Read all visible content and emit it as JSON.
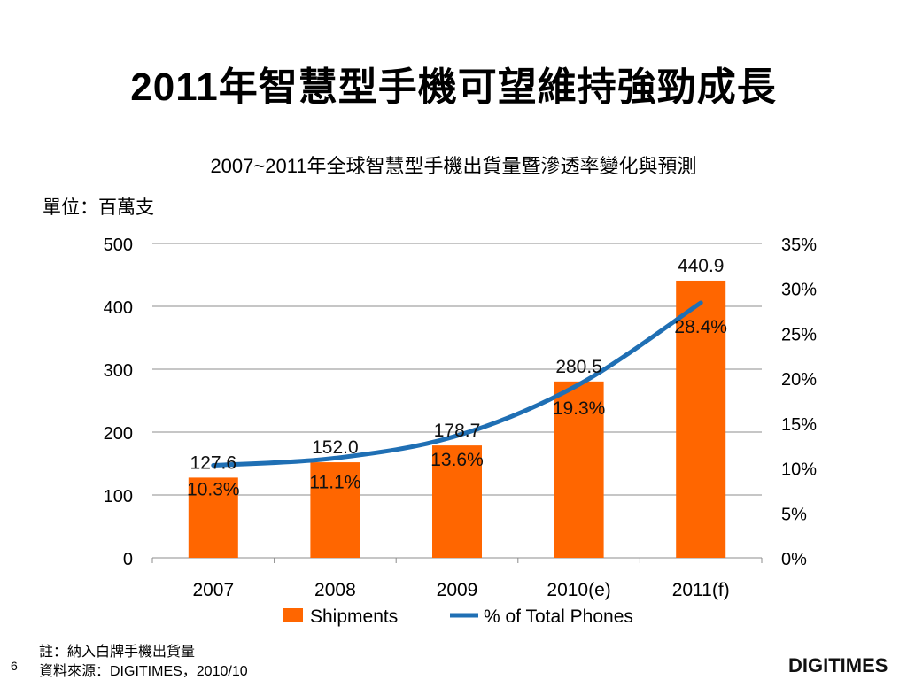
{
  "slide": {
    "title": "2011年智慧型手機可望維持強勁成長",
    "unit": "單位：百萬支",
    "note": "註：納入白牌手機出貨量",
    "source": "資料來源：DIGITIMES，2010/10",
    "page_number": "6",
    "logo_text": "DIGITIMES"
  },
  "chart_data": {
    "type": "bar+line",
    "title": "2007~2011年全球智慧型手機出貨量暨滲透率變化與預測",
    "categories": [
      "2007",
      "2008",
      "2009",
      "2010(e)",
      "2011(f)"
    ],
    "series": [
      {
        "name": "Shipments",
        "type": "bar",
        "axis": "left",
        "color": "#FF6600",
        "values": [
          127.6,
          152.0,
          178.7,
          280.5,
          440.9
        ],
        "labels": [
          "127.6",
          "152.0",
          "178.7",
          "280.5",
          "440.9"
        ]
      },
      {
        "name": "% of Total Phones",
        "type": "line",
        "axis": "right",
        "color": "#1F6FB4",
        "values": [
          10.3,
          11.1,
          13.6,
          19.3,
          28.4
        ],
        "labels": [
          "10.3%",
          "11.1%",
          "13.6%",
          "19.3%",
          "28.4%"
        ]
      }
    ],
    "y_left": {
      "min": 0,
      "max": 500,
      "ticks": [
        "0",
        "100",
        "200",
        "300",
        "400",
        "500"
      ]
    },
    "y_right": {
      "min": 0,
      "max": 35,
      "ticks": [
        "0%",
        "5%",
        "10%",
        "15%",
        "20%",
        "25%",
        "30%",
        "35%"
      ]
    },
    "grid": true,
    "legend": "bottom"
  }
}
